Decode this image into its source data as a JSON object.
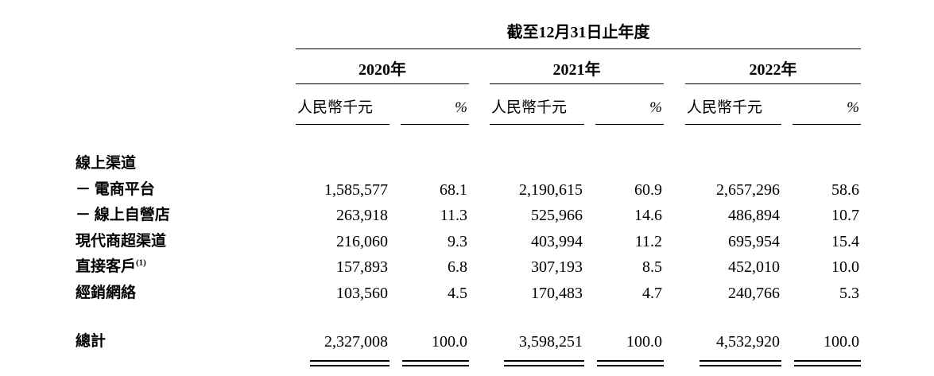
{
  "page": {
    "background": "#ffffff",
    "text_color": "#000000"
  },
  "table": {
    "title": "截至12月31日止年度",
    "years": [
      "2020年",
      "2021年",
      "2022年"
    ],
    "amount_header": "人民幣千元",
    "pct_header": "%",
    "rows": [
      {
        "label": "線上渠道"
      },
      {
        "label": "－ 電商平台",
        "values": [
          "1,585,577",
          "68.1",
          "2,190,615",
          "60.9",
          "2,657,296",
          "58.6"
        ]
      },
      {
        "label": "－ 線上自營店",
        "values": [
          "263,918",
          "11.3",
          "525,966",
          "14.6",
          "486,894",
          "10.7"
        ]
      },
      {
        "label": "現代商超渠道",
        "values": [
          "216,060",
          "9.3",
          "403,994",
          "11.2",
          "695,954",
          "15.4"
        ]
      },
      {
        "label": "直接客戶",
        "note": "(1)",
        "values": [
          "157,893",
          "6.8",
          "307,193",
          "8.5",
          "452,010",
          "10.0"
        ]
      },
      {
        "label": "經銷網絡",
        "values": [
          "103,560",
          "4.5",
          "170,483",
          "4.7",
          "240,766",
          "5.3"
        ]
      }
    ],
    "total": {
      "label": "總計",
      "values": [
        "2,327,008",
        "100.0",
        "3,598,251",
        "100.0",
        "4,532,920",
        "100.0"
      ]
    }
  }
}
